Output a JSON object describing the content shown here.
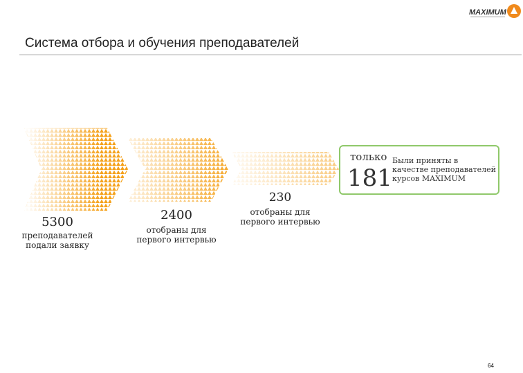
{
  "header": {
    "logo_text": "MAXIMUM",
    "title": "Система отбора и обучения преподавателей"
  },
  "steps": [
    {
      "value": "5300",
      "label_line1": "преподавателей",
      "label_line2": "подали заявку"
    },
    {
      "value": "2400",
      "label_line1": "отобраны для",
      "label_line2": "первого интервью"
    },
    {
      "value": "230",
      "label_line1": "отобраны для",
      "label_line2": "первого интервью"
    }
  ],
  "result": {
    "prefix": "только",
    "value": "181",
    "note": "Были приняты в качестве преподавателей курсов MAXIMUM"
  },
  "colors": {
    "accent_orange": "#f5a11a",
    "callout_green": "#8fc86a"
  },
  "footer": {
    "page_number": "64"
  }
}
